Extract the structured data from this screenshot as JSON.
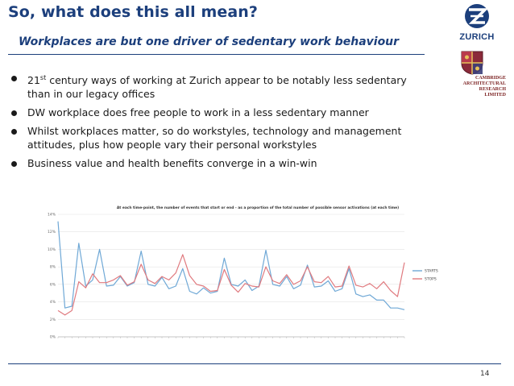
{
  "slide": {
    "title": "So, what does this all mean?",
    "subtitle": "Workplaces are but one driver of sedentary work behaviour",
    "page_number": "14"
  },
  "logos": {
    "zurich": "ZURICH",
    "car": [
      "CAMBRIDGE",
      "ARCHITECTURAL",
      "RESEARCH",
      "LIMITED"
    ]
  },
  "bullets": [
    {
      "pre": "21",
      "sup": "st",
      "post": " century ways of working at Zurich appear to be notably less sedentary than in our legacy offices"
    },
    {
      "pre": "DW workplace does free people to work in a less sedentary manner",
      "sup": "",
      "post": ""
    },
    {
      "pre": "Whilst workplaces matter, so do workstyles, technology and management attitudes, plus how people vary their personal workstyles",
      "sup": "",
      "post": ""
    },
    {
      "pre": "Business value and health benefits converge in a win-win",
      "sup": "",
      "post": ""
    }
  ],
  "colors": {
    "brand": "#1c3f7c",
    "starts": "#6fa8d6",
    "stops": "#e07a7f"
  },
  "chart_data": {
    "type": "line",
    "title": "At each time-point, the number of events that start or end - as a proportion of the total number of possible sensor activations (at each time)",
    "ylim": [
      0,
      14
    ],
    "yticks": [
      "0%",
      "2%",
      "4%",
      "6%",
      "8%",
      "10%",
      "12%",
      "14%"
    ],
    "legend_position": "right",
    "series": [
      {
        "name": "STARTS",
        "values": [
          13.2,
          3.3,
          3.5,
          10.7,
          5.8,
          6.5,
          10.0,
          5.8,
          5.9,
          6.9,
          5.8,
          6.2,
          9.8,
          6.0,
          5.8,
          6.8,
          5.5,
          5.8,
          7.8,
          5.2,
          4.9,
          5.6,
          5.0,
          5.2,
          9.0,
          6.0,
          5.8,
          6.5,
          5.3,
          5.8,
          9.9,
          6.0,
          5.8,
          6.9,
          5.5,
          5.9,
          8.2,
          5.7,
          5.8,
          6.4,
          5.2,
          5.5,
          7.8,
          4.9,
          4.6,
          4.8,
          4.2,
          4.2,
          3.3,
          3.3,
          3.1
        ]
      },
      {
        "name": "STOPS",
        "values": [
          3.0,
          2.5,
          3.0,
          6.3,
          5.6,
          7.2,
          6.2,
          6.2,
          6.5,
          7.0,
          5.9,
          6.3,
          8.3,
          6.5,
          6.1,
          6.9,
          6.5,
          7.3,
          9.4,
          7.0,
          6.0,
          5.8,
          5.2,
          5.3,
          7.7,
          5.9,
          5.1,
          6.1,
          5.8,
          5.7,
          8.0,
          6.4,
          6.1,
          7.1,
          6.0,
          6.4,
          8.0,
          6.3,
          6.2,
          6.9,
          5.7,
          5.8,
          8.1,
          5.9,
          5.7,
          6.1,
          5.5,
          6.3,
          5.3,
          4.6,
          8.5
        ]
      }
    ]
  }
}
